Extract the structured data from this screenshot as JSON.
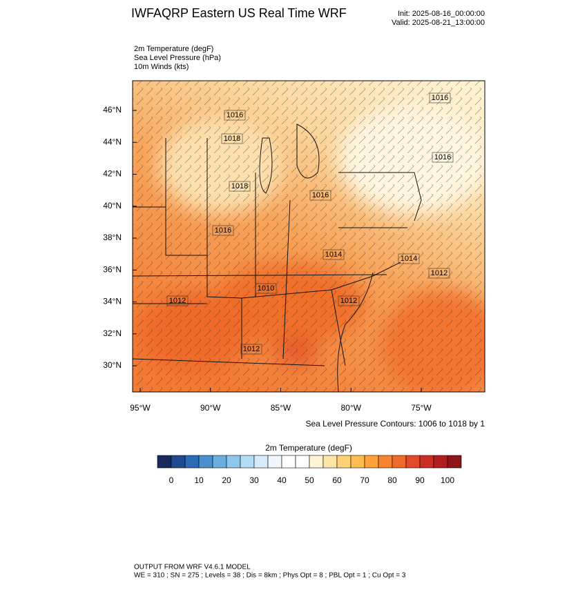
{
  "header": {
    "title": "IWFAQRP Eastern US Real Time WRF",
    "init": "Init: 2025-08-16_00:00:00",
    "valid": "Valid: 2025-08-21_13:00:00"
  },
  "fields": [
    "2m Temperature   (degF)",
    "Sea Level Pressure   (hPa)",
    "10m Winds   (kts)"
  ],
  "map": {
    "lat_range": [
      28.36,
      47.86
    ],
    "lon_range": [
      -95.54,
      -70.48
    ],
    "lat_ticks": [
      {
        "value": 30,
        "label": "30°N"
      },
      {
        "value": 32,
        "label": "32°N"
      },
      {
        "value": 34,
        "label": "34°N"
      },
      {
        "value": 36,
        "label": "36°N"
      },
      {
        "value": 38,
        "label": "38°N"
      },
      {
        "value": 40,
        "label": "40°N"
      },
      {
        "value": 42,
        "label": "42°N"
      },
      {
        "value": 44,
        "label": "44°N"
      },
      {
        "value": 46,
        "label": "46°N"
      }
    ],
    "lon_ticks": [
      {
        "value": -95,
        "label": "95°W"
      },
      {
        "value": -90,
        "label": "90°W"
      },
      {
        "value": -85,
        "label": "85°W"
      },
      {
        "value": -80,
        "label": "80°W"
      },
      {
        "value": -75,
        "label": "75°W"
      }
    ],
    "contour_labels": [
      1016,
      1016,
      1018,
      1018,
      1016,
      1016,
      1016,
      1014,
      1014,
      1012,
      1012,
      1010,
      1012,
      1012
    ],
    "contour_note": "Sea Level Pressure Contours: 1006 to 1018 by 1"
  },
  "colorbar": {
    "title": "2m Temperature  (degF)",
    "colors": [
      "#1a2a5e",
      "#1f4a90",
      "#2c6bb5",
      "#4a8fd0",
      "#6aaee0",
      "#8dc7ee",
      "#b3dcf5",
      "#d6ecfa",
      "#eef7fd",
      "#ffffff",
      "#ffffff",
      "#fff4d6",
      "#ffe6a8",
      "#ffd27a",
      "#ffbb50",
      "#fda23a",
      "#f78530",
      "#f06a2a",
      "#e24a28",
      "#cc2e26",
      "#b01e22",
      "#8e1518"
    ],
    "ticks": [
      0,
      10,
      20,
      30,
      40,
      50,
      60,
      70,
      80,
      90,
      100
    ]
  },
  "footer": [
    "OUTPUT FROM WRF V4.6.1 MODEL",
    "WE = 310 ; SN = 275 ; Levels = 38 ; Dis = 8km ; Phys Opt = 8 ; PBL Opt = 1 ; Cu Opt = 3"
  ]
}
